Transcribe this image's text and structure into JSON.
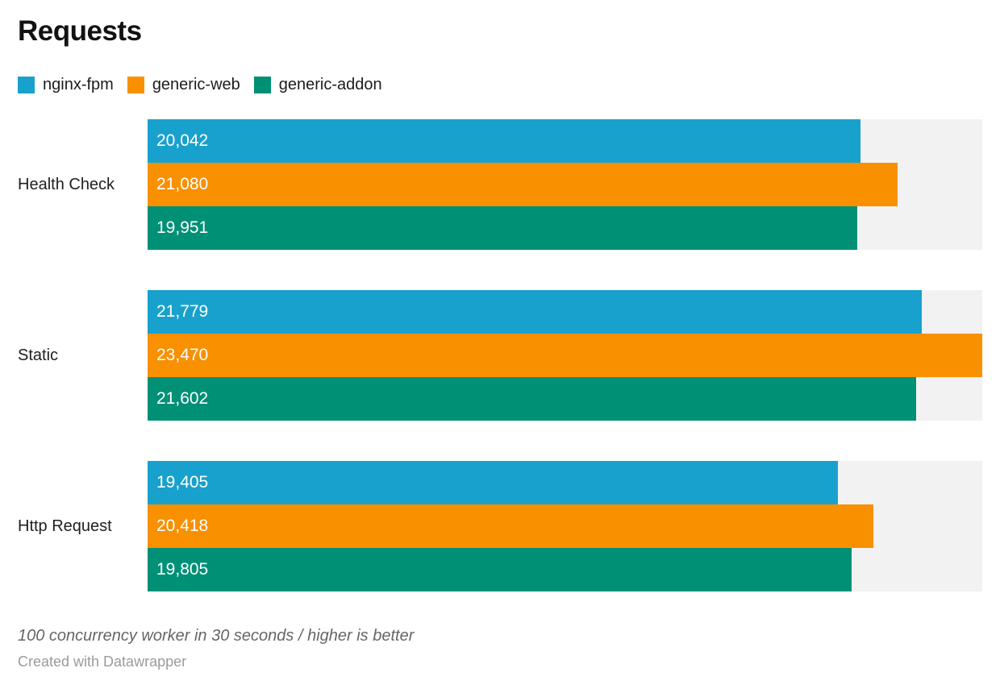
{
  "title": "Requests",
  "legend": {
    "items": [
      {
        "label": "nginx-fpm",
        "color": "#18a1cd"
      },
      {
        "label": "generic-web",
        "color": "#f89000"
      },
      {
        "label": "generic-addon",
        "color": "#009076"
      }
    ]
  },
  "colors": {
    "series_blue": "#18a1cd",
    "series_orange": "#f89000",
    "series_teal": "#009076",
    "bar_track": "#f2f2f2",
    "value_label": "#ffffff",
    "note_text": "#666666",
    "credit_text": "#9b9b9b"
  },
  "footer": {
    "note": "100 concurrency worker in 30 seconds / higher is better",
    "credit": "Created with Datawrapper"
  },
  "chart_data": {
    "type": "bar",
    "orientation": "horizontal",
    "title": "Requests",
    "categories": [
      "Health Check",
      "Static",
      "Http Request"
    ],
    "series": [
      {
        "name": "nginx-fpm",
        "color": "#18a1cd",
        "values": [
          20042,
          21779,
          19405
        ]
      },
      {
        "name": "generic-web",
        "color": "#f89000",
        "values": [
          21080,
          23470,
          20418
        ]
      },
      {
        "name": "generic-addon",
        "color": "#009076",
        "values": [
          19951,
          21602,
          19805
        ]
      }
    ],
    "value_labels": [
      [
        "20,042",
        "21,080",
        "19,951"
      ],
      [
        "21,779",
        "23,470",
        "21,602"
      ],
      [
        "19,405",
        "20,418",
        "19,805"
      ]
    ],
    "xlabel": "",
    "ylabel": "",
    "xmax": 23470,
    "grid": false,
    "legend_position": "top",
    "note": "100 concurrency worker in 30 seconds / higher is better",
    "credit": "Created with Datawrapper"
  }
}
